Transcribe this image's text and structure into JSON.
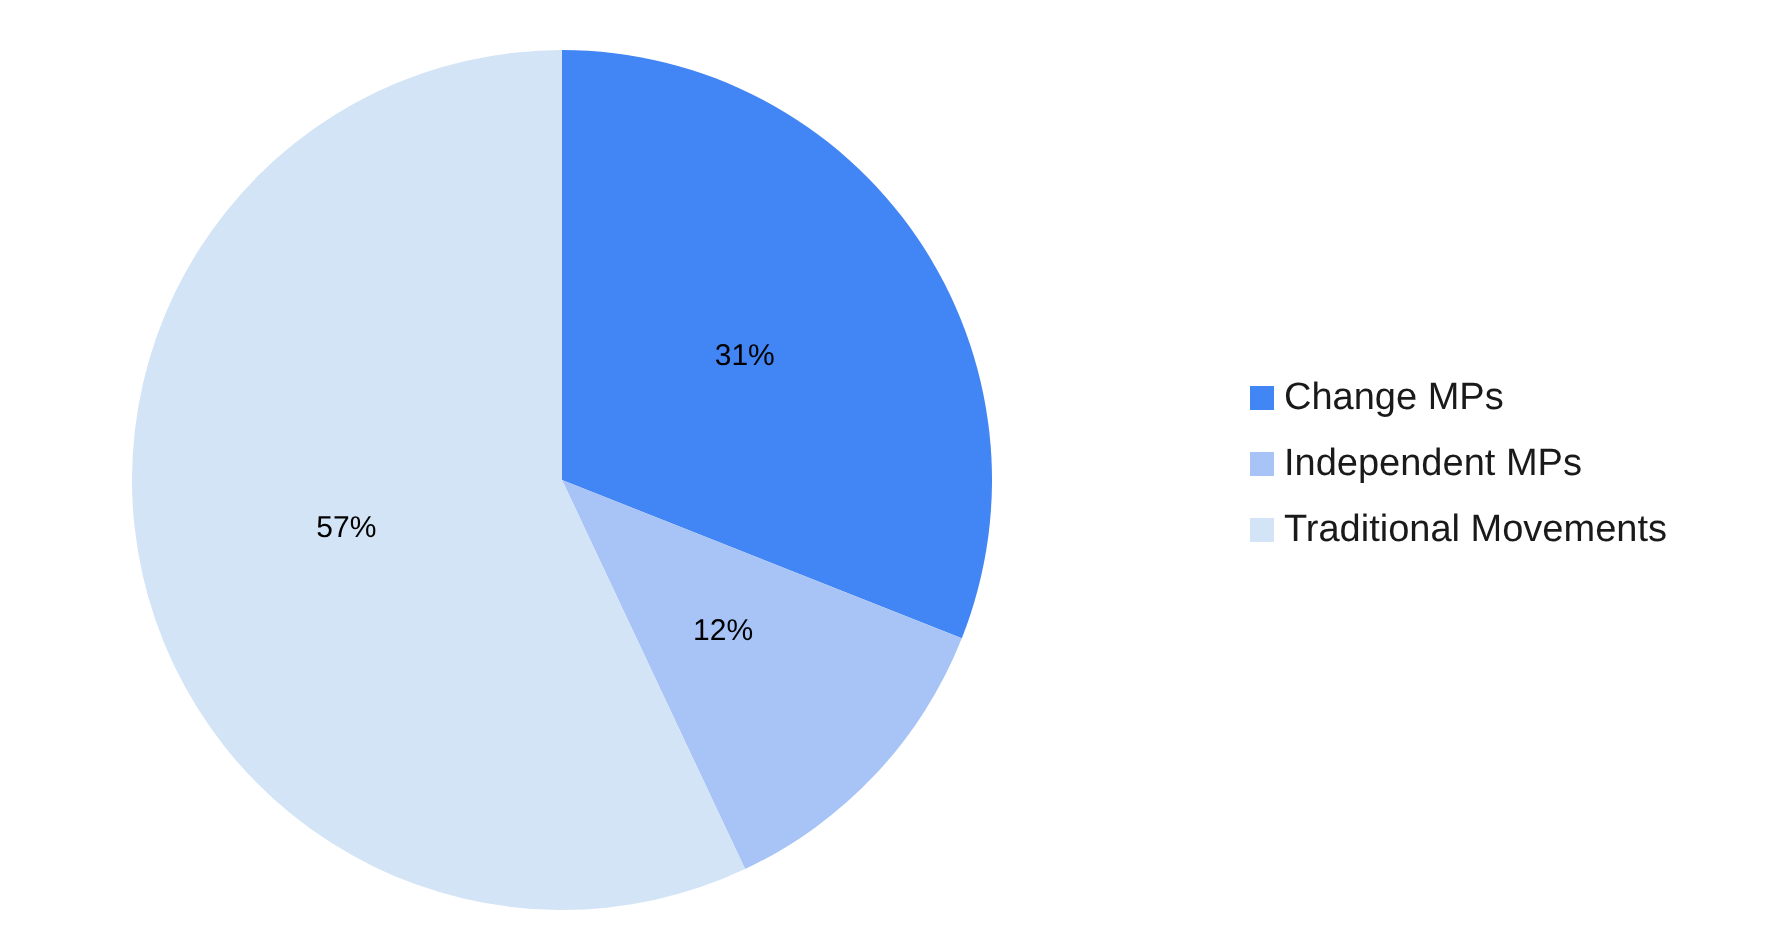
{
  "chart_data": {
    "type": "pie",
    "categories": [
      "Change MPs",
      "Independent MPs",
      "Traditional Movements"
    ],
    "values": [
      31,
      12,
      57
    ],
    "colors": [
      "#4285f4",
      "#a8c4f7",
      "#d3e4f7"
    ],
    "value_labels": [
      "31%",
      "12%",
      "57%"
    ],
    "legend": "right"
  }
}
